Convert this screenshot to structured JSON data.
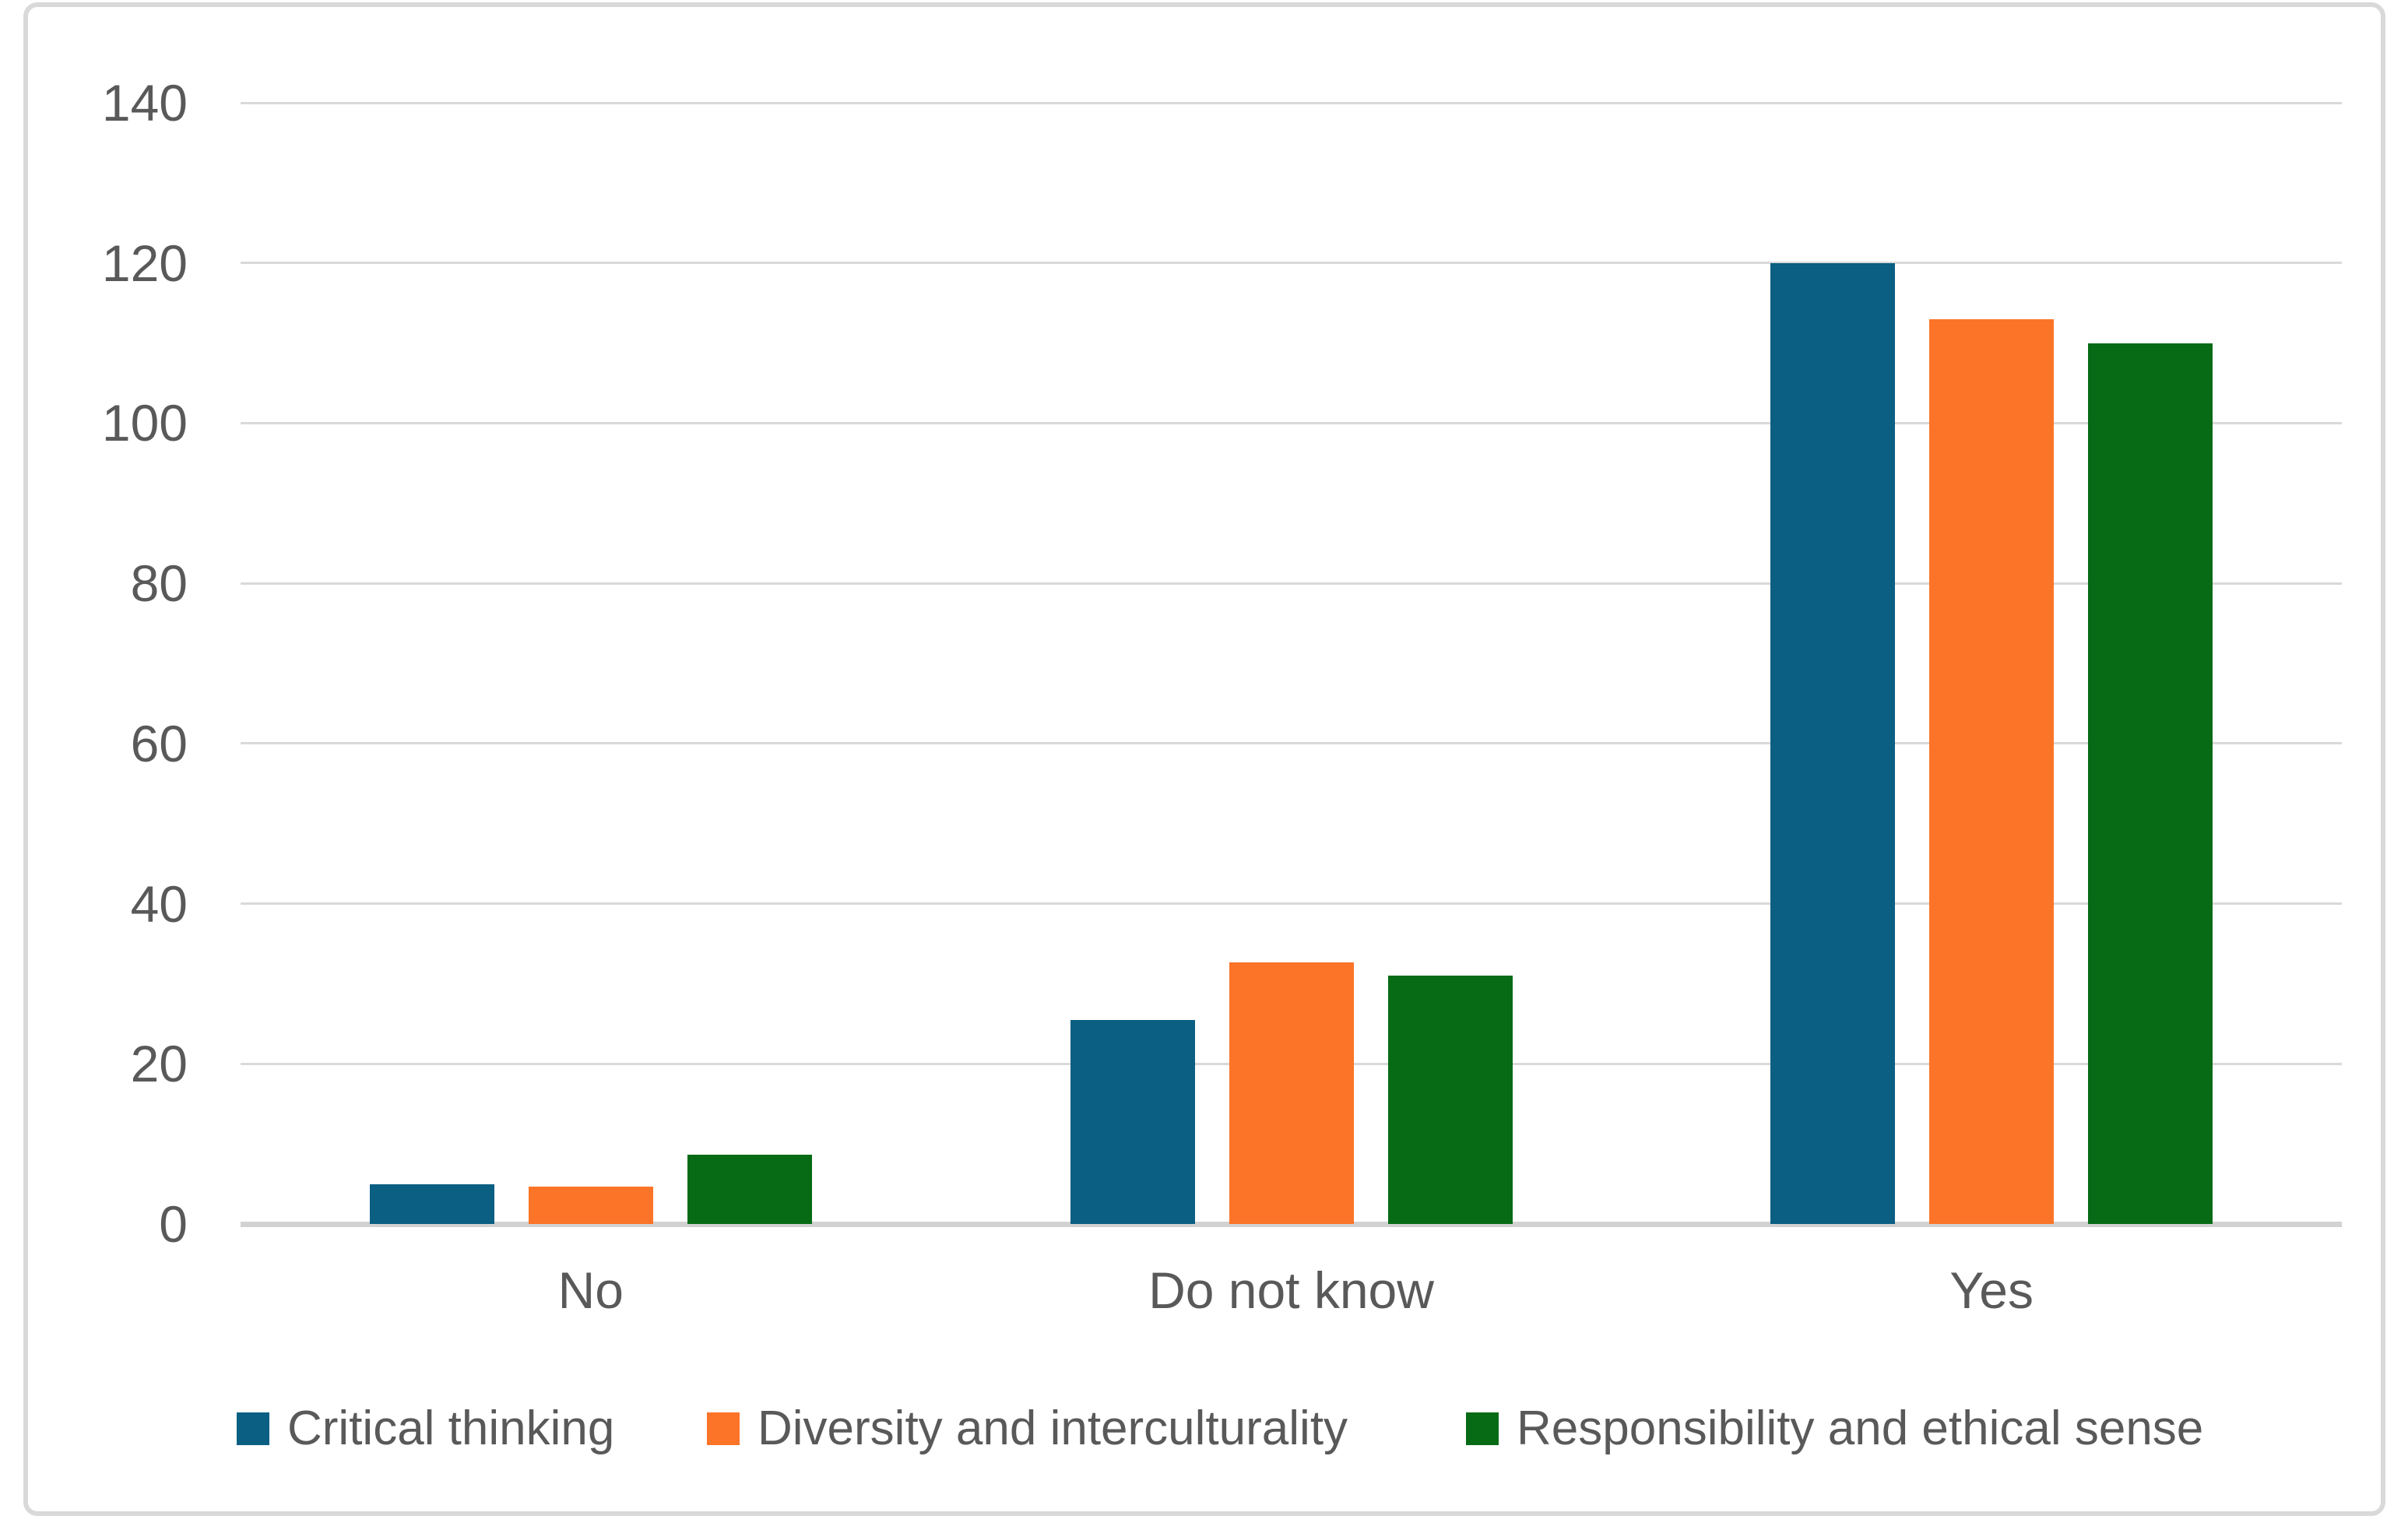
{
  "chart_data": {
    "type": "bar",
    "title": "",
    "categories": [
      "No",
      "Do not know",
      "Yes"
    ],
    "series": [
      {
        "name": "Critical thinking",
        "color": "#0B5F82",
        "values": [
          5,
          25.5,
          120
        ]
      },
      {
        "name": "Diversity and interculturality",
        "color": "#FB7428",
        "values": [
          4.7,
          32.7,
          113
        ]
      },
      {
        "name": "Responsibility and ethical sense",
        "color": "#076B16",
        "values": [
          8.7,
          31,
          110
        ]
      }
    ],
    "y_axis": {
      "min": 0,
      "max": 140,
      "tick_step": 20,
      "tick_labels": [
        "0",
        "20",
        "40",
        "60",
        "80",
        "100",
        "120",
        "140"
      ]
    },
    "grid": "horizontal",
    "legend_position": "bottom",
    "colors": {
      "axis_text": "#595959",
      "gridline": "#D9D9D9",
      "axis_line": "#D2D2D2",
      "frame_border": "#D9D9D9",
      "background": "#FFFFFF"
    }
  },
  "legend": {
    "items": [
      {
        "label": "Critical thinking"
      },
      {
        "label": "Diversity and interculturality"
      },
      {
        "label": "Responsibility and ethical sense"
      }
    ]
  }
}
